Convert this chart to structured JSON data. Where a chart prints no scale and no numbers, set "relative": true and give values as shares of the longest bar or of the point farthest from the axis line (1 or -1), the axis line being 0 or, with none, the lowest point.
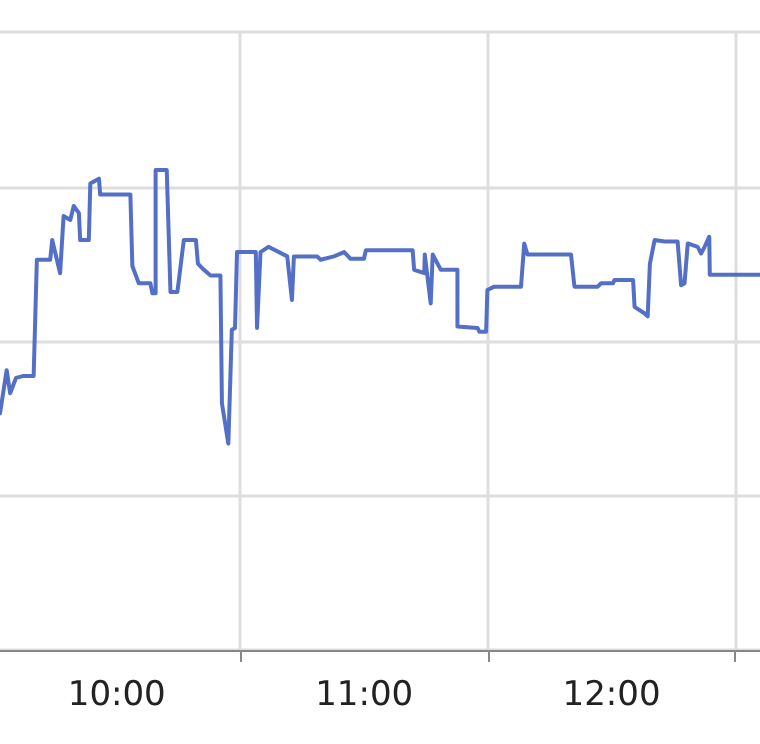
{
  "chart_data": {
    "type": "line",
    "relative": true,
    "grid": true,
    "marker": "none",
    "line_style": "solid",
    "xlim": [
      9.528,
      12.6
    ],
    "xticks": [
      {
        "value": 10,
        "label": "10:00"
      },
      {
        "value": 10.5,
        "label": null
      },
      {
        "value": 11,
        "label": "11:00"
      },
      {
        "value": 11.5,
        "label": null
      },
      {
        "value": 12,
        "label": "12:00"
      },
      {
        "value": 12.5,
        "label": null
      }
    ],
    "series": [
      {
        "color": "#5470c6",
        "x": [
          9.528,
          9.555,
          9.569,
          9.593,
          9.623,
          9.664,
          9.677,
          9.731,
          9.739,
          9.771,
          9.785,
          9.812,
          9.826,
          9.847,
          9.852,
          9.887,
          9.893,
          9.928,
          9.933,
          10.055,
          10.063,
          10.089,
          10.136,
          10.144,
          10.157,
          10.157,
          10.202,
          10.217,
          10.245,
          10.271,
          10.32,
          10.328,
          10.352,
          10.379,
          10.419,
          10.425,
          10.451,
          10.465,
          10.478,
          10.486,
          10.562,
          10.567,
          10.581,
          10.613,
          10.689,
          10.708,
          10.716,
          10.81,
          10.824,
          10.878,
          10.919,
          10.945,
          10.999,
          11.007,
          11.196,
          11.202,
          11.243,
          11.245,
          11.269,
          11.277,
          11.31,
          11.377,
          11.377,
          11.458,
          11.466,
          11.493,
          11.498,
          11.526,
          11.634,
          11.647,
          11.66,
          11.836,
          11.85,
          11.944,
          11.957,
          12.006,
          12.012,
          12.087,
          12.093,
          12.134,
          12.146,
          12.155,
          12.174,
          12.215,
          12.267,
          12.281,
          12.295,
          12.308,
          12.348,
          12.362,
          12.376,
          12.395,
          12.397,
          12.6
        ],
        "values": [
          0.493,
          0.583,
          0.535,
          0.567,
          0.571,
          0.571,
          0.813,
          0.813,
          0.854,
          0.785,
          0.904,
          0.896,
          0.925,
          0.91,
          0.854,
          0.854,
          0.972,
          0.982,
          0.949,
          0.949,
          0.8,
          0.764,
          0.764,
          0.743,
          0.743,
          1,
          1,
          0.746,
          0.746,
          0.854,
          0.854,
          0.805,
          0.792,
          0.78,
          0.78,
          0.514,
          0.43,
          0.667,
          0.671,
          0.829,
          0.829,
          0.671,
          0.829,
          0.84,
          0.82,
          0.729,
          0.82,
          0.82,
          0.813,
          0.82,
          0.829,
          0.815,
          0.815,
          0.833,
          0.833,
          0.792,
          0.785,
          0.824,
          0.722,
          0.824,
          0.792,
          0.792,
          0.674,
          0.671,
          0.663,
          0.663,
          0.75,
          0.757,
          0.757,
          0.847,
          0.824,
          0.824,
          0.757,
          0.757,
          0.764,
          0.764,
          0.771,
          0.771,
          0.715,
          0.701,
          0.695,
          0.805,
          0.854,
          0.851,
          0.851,
          0.76,
          0.764,
          0.847,
          0.84,
          0.826,
          0.84,
          0.861,
          0.782,
          0.782
        ]
      }
    ]
  }
}
